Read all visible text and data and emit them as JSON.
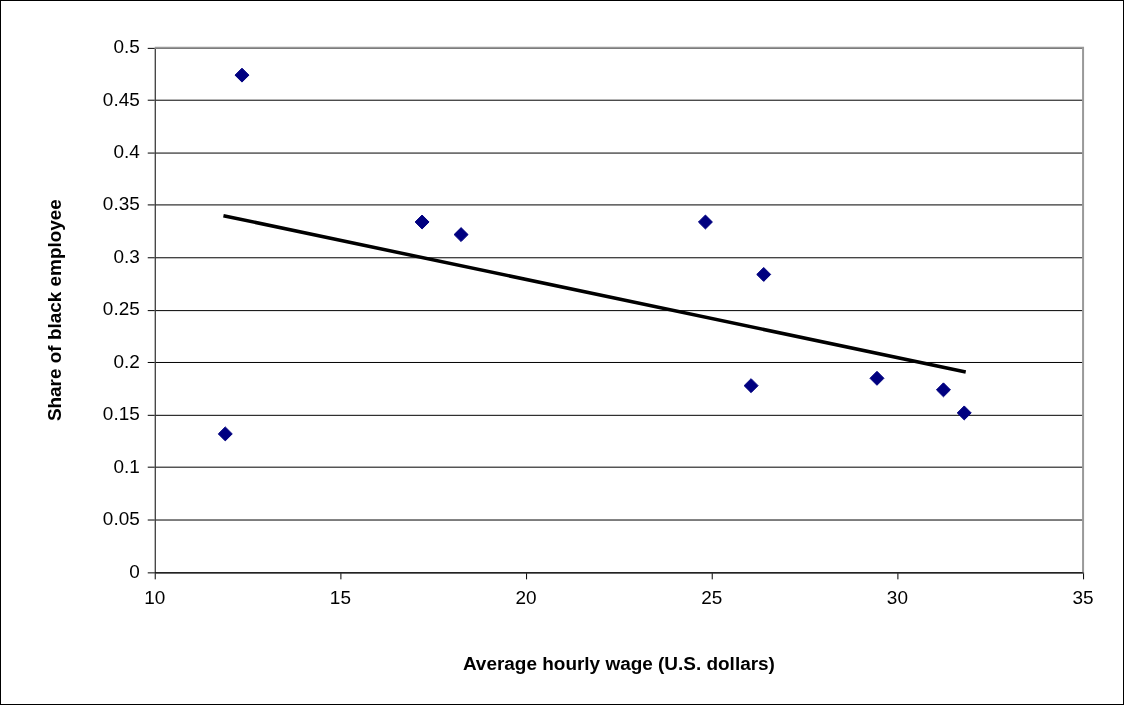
{
  "chart_data": {
    "type": "scatter",
    "xlabel": "Average hourly wage (U.S. dollars)",
    "ylabel": "Share of black employee",
    "xlim": [
      10,
      35
    ],
    "xticks": [
      10,
      15,
      20,
      25,
      30,
      35
    ],
    "ylim": [
      0,
      0.5
    ],
    "yticks": [
      0,
      0.05,
      0.1,
      0.15,
      0.2,
      0.25,
      0.3,
      0.35,
      0.4,
      0.45,
      0.5
    ],
    "grid": "y",
    "legend": false,
    "marker": "diamond",
    "series": [
      {
        "type": "scatter",
        "color": "#000080",
        "x": [
          11.9,
          12.35,
          17.2,
          18.25,
          24.83,
          26.4,
          26.06,
          29.45,
          31.24,
          31.8
        ],
        "values": [
          0.132,
          0.474,
          0.334,
          0.322,
          0.334,
          0.284,
          0.178,
          0.185,
          0.174,
          0.152
        ]
      },
      {
        "type": "line",
        "color": "#000000",
        "marker": "none",
        "line_style": "solid",
        "x": [
          11.85,
          31.84
        ],
        "values": [
          0.34,
          0.191
        ]
      }
    ]
  }
}
